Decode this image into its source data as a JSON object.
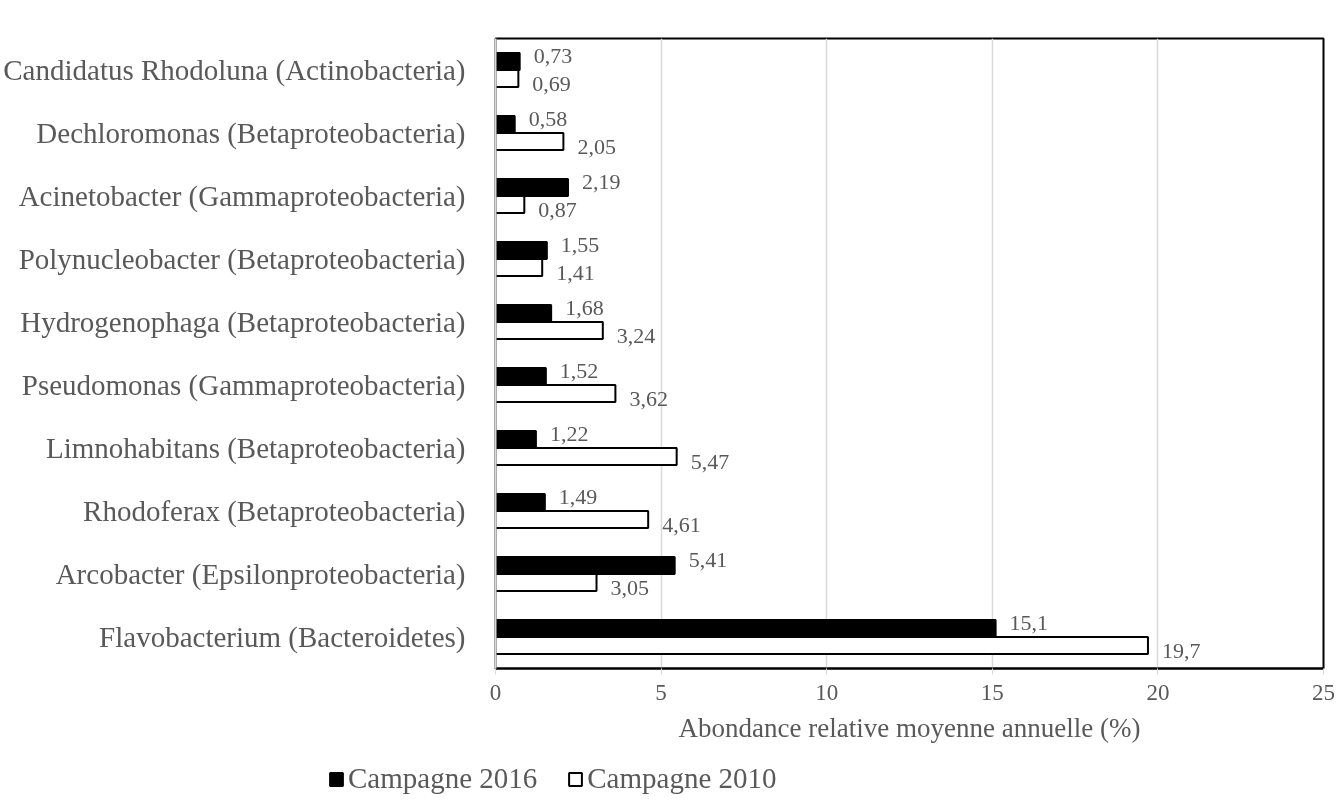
{
  "chart_data": {
    "type": "bar",
    "orientation": "horizontal",
    "categories": [
      "Candidatus Rhodoluna (Actinobacteria)",
      "Dechloromonas (Betaproteobacteria)",
      "Acinetobacter (Gammaproteobacteria)",
      "Polynucleobacter (Betaproteobacteria)",
      "Hydrogenophaga (Betaproteobacteria)",
      "Pseudomonas (Gammaproteobacteria)",
      "Limnohabitans (Betaproteobacteria)",
      "Rhodoferax (Betaproteobacteria)",
      "Arcobacter (Epsilonproteobacteria)",
      "Flavobacterium (Bacteroidetes)"
    ],
    "series": [
      {
        "name": "Campagne 2016",
        "color": "#000000",
        "values": [
          0.73,
          0.58,
          2.19,
          1.55,
          1.68,
          1.52,
          1.22,
          1.49,
          5.41,
          15.1
        ],
        "value_labels": [
          "0,73",
          "0,58",
          "2,19",
          "1,55",
          "1,68",
          "1,52",
          "1,22",
          "1,49",
          "5,41",
          "15,1"
        ]
      },
      {
        "name": "Campagne 2010",
        "color": "#ffffff",
        "values": [
          0.69,
          2.05,
          0.87,
          1.41,
          3.24,
          3.62,
          5.47,
          4.61,
          3.05,
          19.7
        ],
        "value_labels": [
          "0,69",
          "2,05",
          "0,87",
          "1,41",
          "3,24",
          "3,62",
          "5,47",
          "4,61",
          "3,05",
          "19,7"
        ]
      }
    ],
    "xlabel": "Abondance relative moyenne annuelle (%)",
    "xlim": [
      0,
      25
    ],
    "xticks": [
      0,
      5,
      10,
      15,
      20,
      25
    ],
    "grid": "x",
    "legend": "bottom"
  }
}
